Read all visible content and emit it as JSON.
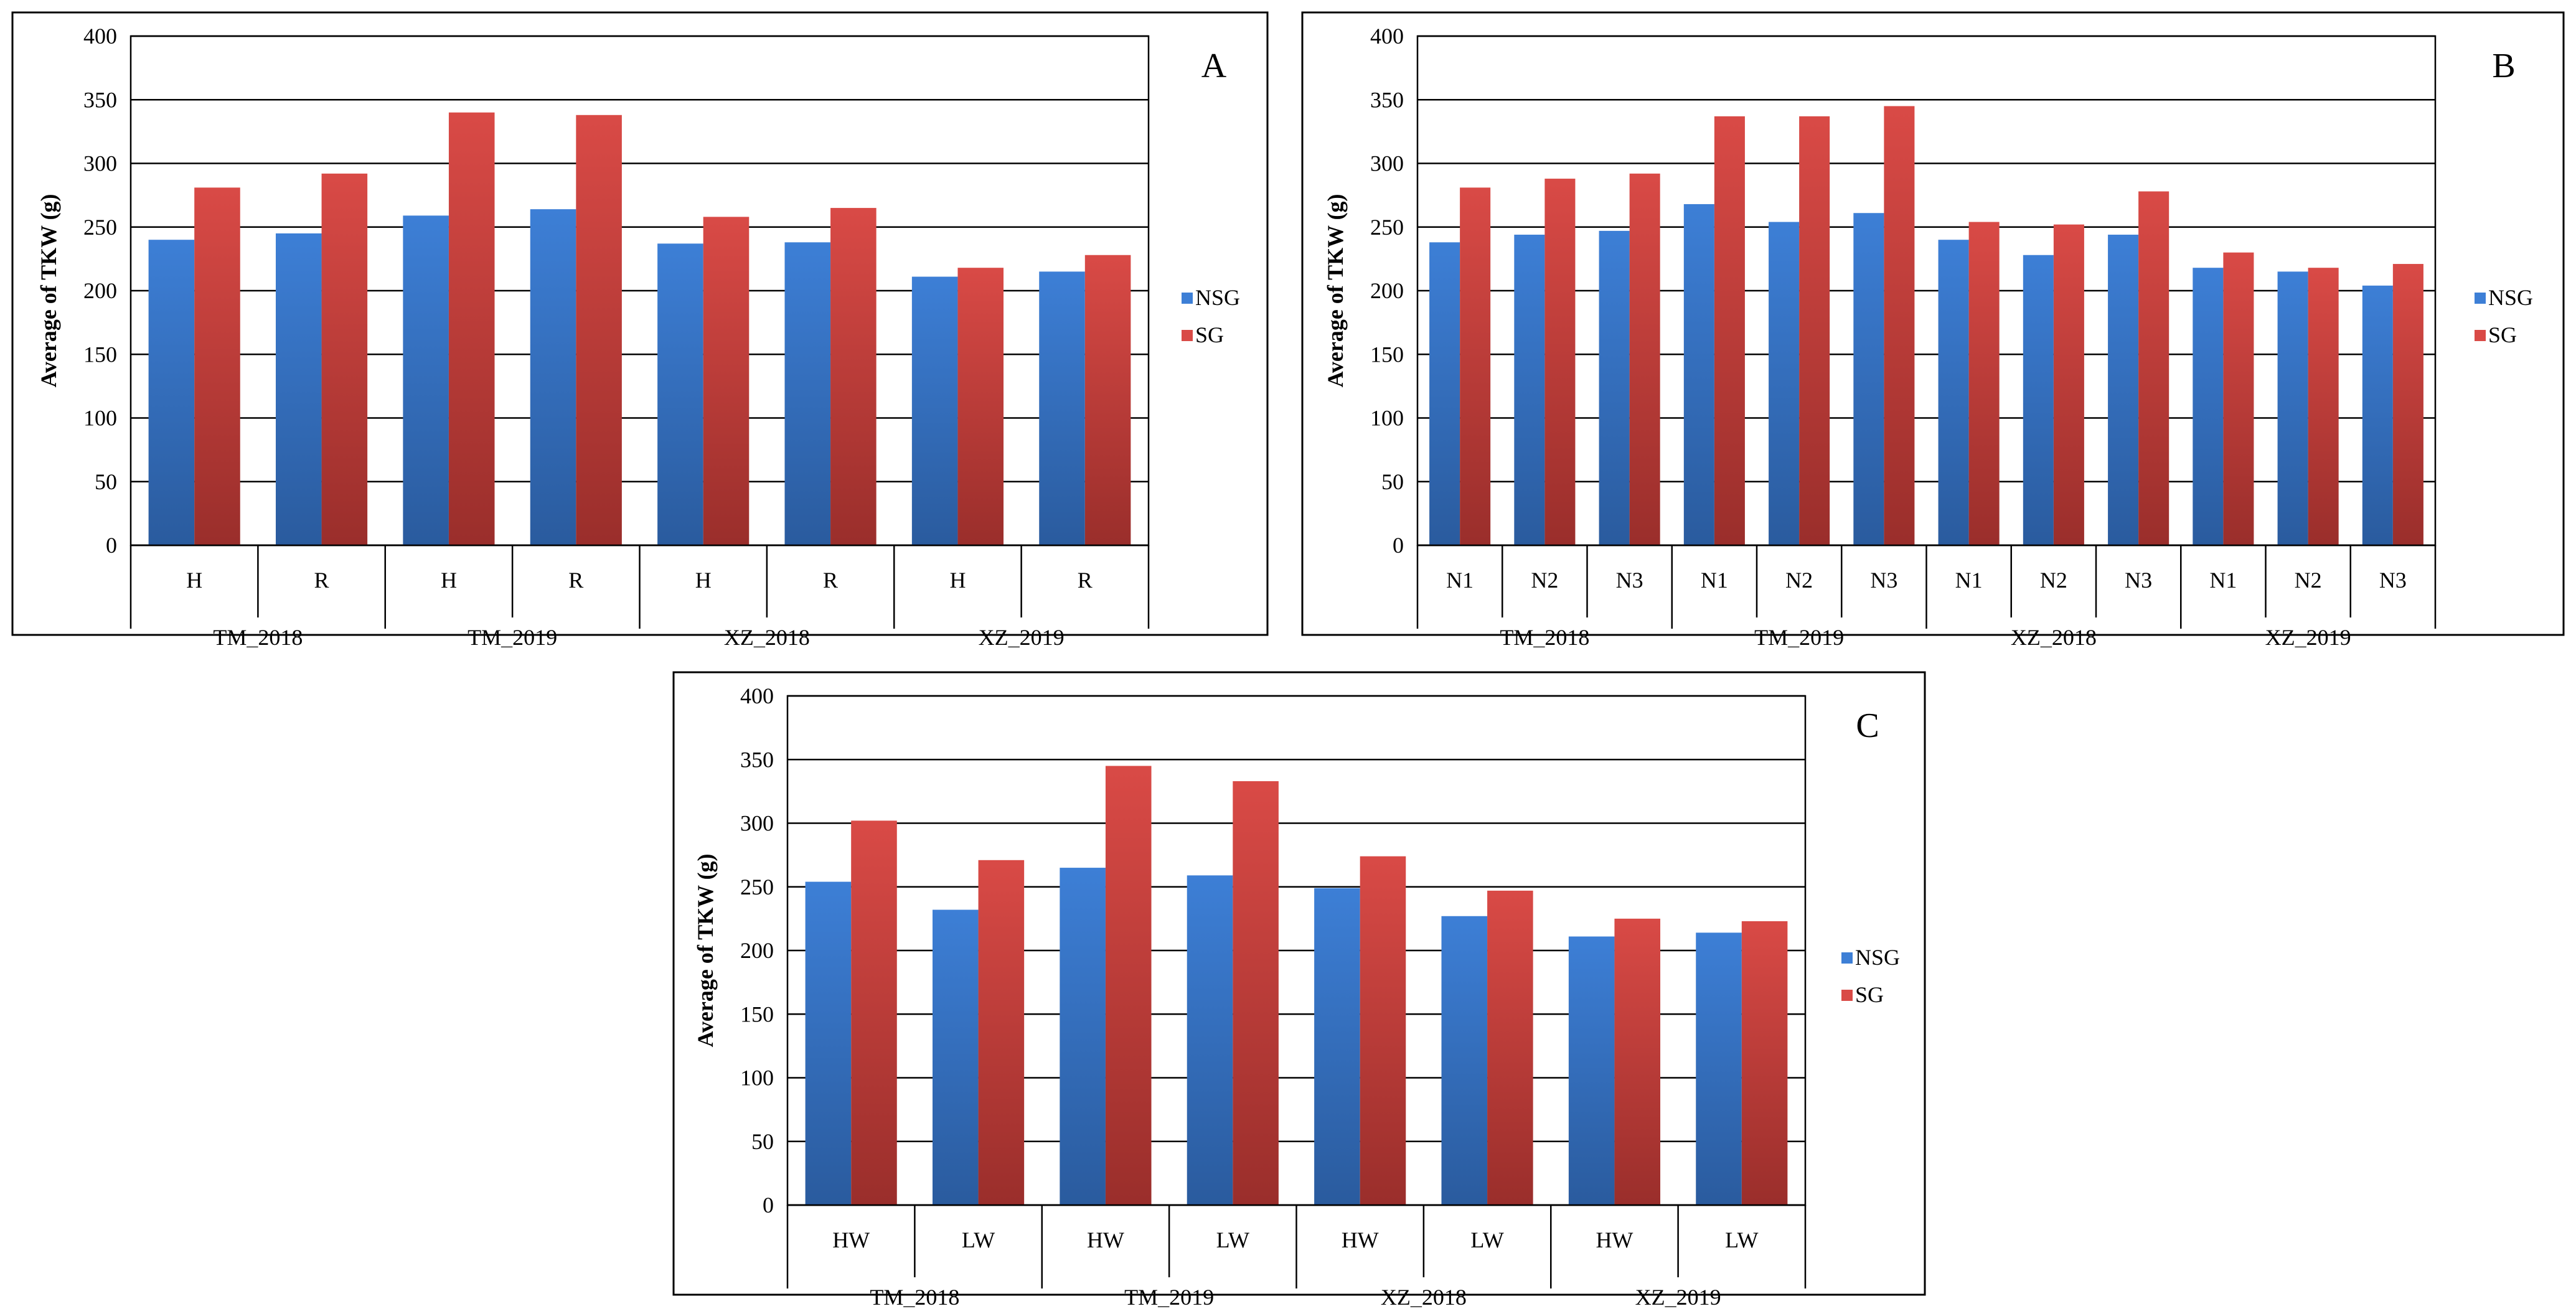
{
  "colors": {
    "nsg_top": "#3d7fd6",
    "nsg_bottom": "#2a5b9e",
    "sg_top": "#d94a46",
    "sg_bottom": "#9a2e2b",
    "grid": "#000000",
    "frame": "#000000"
  },
  "chart_data": [
    {
      "panel": "A",
      "type": "bar",
      "ylabel": "Average of TKW (g)",
      "ylim": [
        0,
        400
      ],
      "yticks": [
        0,
        50,
        100,
        150,
        200,
        250,
        300,
        350,
        400
      ],
      "groups": [
        {
          "name": "TM_2018",
          "categories": [
            "H",
            "R"
          ]
        },
        {
          "name": "TM_2019",
          "categories": [
            "H",
            "R"
          ]
        },
        {
          "name": "XZ_2018",
          "categories": [
            "H",
            "R"
          ]
        },
        {
          "name": "XZ_2019",
          "categories": [
            "H",
            "R"
          ]
        }
      ],
      "series": [
        {
          "name": "NSG",
          "values": [
            240,
            245,
            259,
            264,
            237,
            238,
            211,
            215
          ]
        },
        {
          "name": "SG",
          "values": [
            281,
            292,
            340,
            338,
            258,
            265,
            218,
            228
          ]
        }
      ],
      "legend": "right"
    },
    {
      "panel": "B",
      "type": "bar",
      "ylabel": "Average of TKW (g)",
      "ylim": [
        0,
        400
      ],
      "yticks": [
        0,
        50,
        100,
        150,
        200,
        250,
        300,
        350,
        400
      ],
      "groups": [
        {
          "name": "TM_2018",
          "categories": [
            "N1",
            "N2",
            "N3"
          ]
        },
        {
          "name": "TM_2019",
          "categories": [
            "N1",
            "N2",
            "N3"
          ]
        },
        {
          "name": "XZ_2018",
          "categories": [
            "N1",
            "N2",
            "N3"
          ]
        },
        {
          "name": "XZ_2019",
          "categories": [
            "N1",
            "N2",
            "N3"
          ]
        }
      ],
      "series": [
        {
          "name": "NSG",
          "values": [
            238,
            244,
            247,
            268,
            254,
            261,
            240,
            228,
            244,
            218,
            215,
            204
          ]
        },
        {
          "name": "SG",
          "values": [
            281,
            288,
            292,
            337,
            337,
            345,
            254,
            252,
            278,
            230,
            218,
            221
          ]
        }
      ],
      "legend": "right"
    },
    {
      "panel": "C",
      "type": "bar",
      "ylabel": "Average of TKW (g)",
      "ylim": [
        0,
        400
      ],
      "yticks": [
        0,
        50,
        100,
        150,
        200,
        250,
        300,
        350,
        400
      ],
      "groups": [
        {
          "name": "TM_2018",
          "categories": [
            "HW",
            "LW"
          ]
        },
        {
          "name": "TM_2019",
          "categories": [
            "HW",
            "LW"
          ]
        },
        {
          "name": "XZ_2018",
          "categories": [
            "HW",
            "LW"
          ]
        },
        {
          "name": "XZ_2019",
          "categories": [
            "HW",
            "LW"
          ]
        }
      ],
      "series": [
        {
          "name": "NSG",
          "values": [
            254,
            232,
            265,
            259,
            249,
            227,
            211,
            214
          ]
        },
        {
          "name": "SG",
          "values": [
            302,
            271,
            345,
            333,
            274,
            247,
            225,
            223
          ]
        }
      ],
      "legend": "right"
    }
  ]
}
